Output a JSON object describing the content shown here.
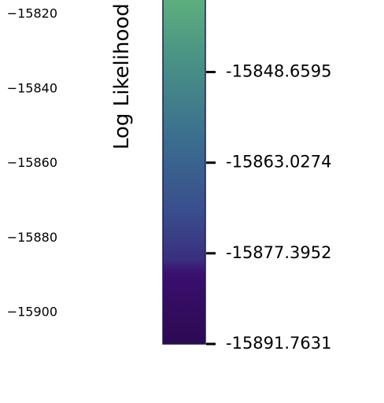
{
  "chart_data": {
    "type": "heatmap",
    "colorbar": {
      "label": "Log Likelihood",
      "colormap": "viridis",
      "ticks": [
        "-15848.6595",
        "-15863.0274",
        "-15877.3952",
        "-15891.7631"
      ],
      "tick_values": [
        -15848.6595,
        -15863.0274,
        -15877.3952,
        -15891.7631
      ],
      "colors": {
        "top": "#5fb27c",
        "mid": "#3b6a90",
        "bottom": "#2e0b55",
        "outline": "#1d1d4f"
      }
    },
    "y_axis": {
      "ticks": [
        "−15820",
        "−15840",
        "−15860",
        "−15880",
        "−15900"
      ],
      "tick_values": [
        -15820,
        -15840,
        -15860,
        -15880,
        -15900
      ]
    }
  }
}
